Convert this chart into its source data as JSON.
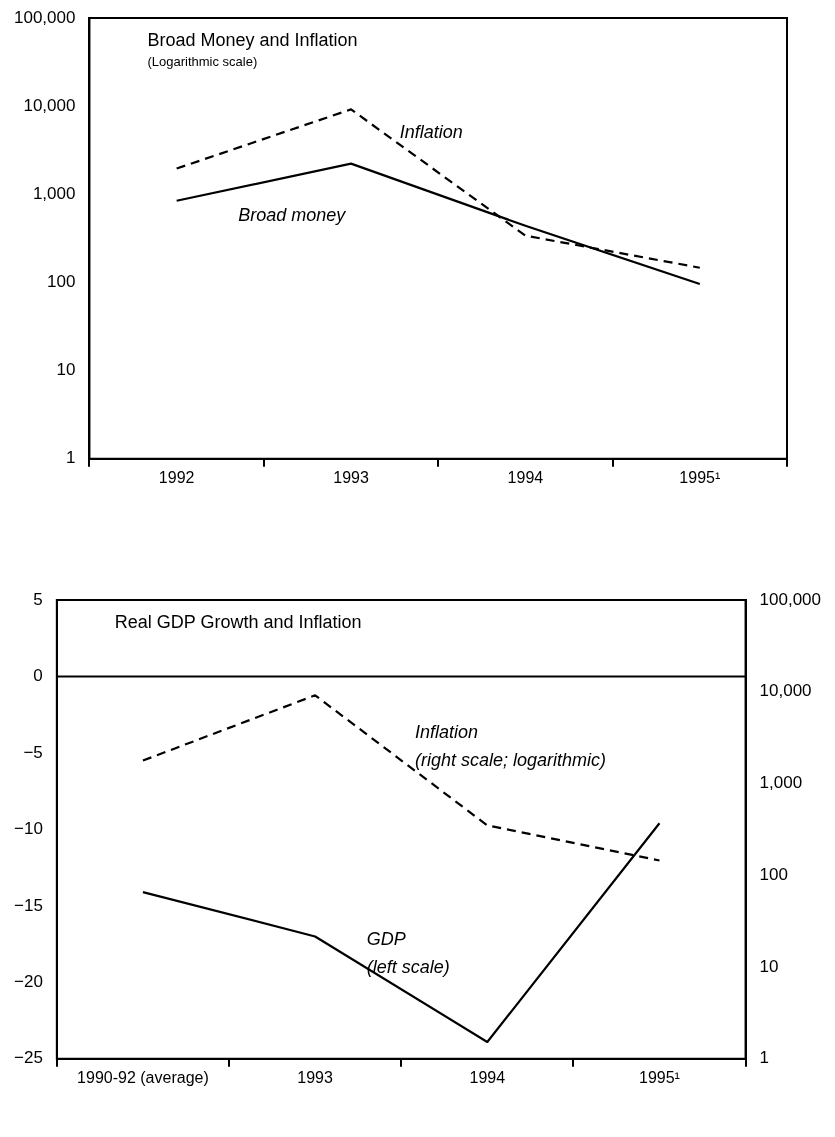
{
  "chart_data": [
    {
      "type": "line",
      "title": "Broad Money and Inflation",
      "subtitle": "(Logarithmic scale)",
      "categories": [
        "1992",
        "1993",
        "1994",
        "1995¹"
      ],
      "series": [
        {
          "color": "#000000",
          "line_style": "dashed",
          "values": [
            1960,
            9200,
            340,
            147
          ]
        },
        {
          "color": "#000000",
          "line_style": "solid",
          "values": [
            845,
            2230,
            440,
            96
          ]
        }
      ],
      "log": true,
      "ylim": [
        1,
        100000
      ],
      "yticks": [
        {
          "value": 1,
          "label": "1"
        },
        {
          "value": 10,
          "label": "10"
        },
        {
          "value": 100,
          "label": "100"
        },
        {
          "value": 1000,
          "label": "1,000"
        },
        {
          "value": 10000,
          "label": "10,000"
        },
        {
          "value": 100000,
          "label": "100,000"
        }
      ],
      "annotations": [
        "Inflation",
        "Broad money"
      ],
      "grid": false,
      "legend": false,
      "marker": "none"
    },
    {
      "type": "line",
      "title": "Real GDP Growth and Inflation",
      "categories": [
        "1990-92 (average)",
        "1993",
        "1994",
        "1995¹"
      ],
      "series": [
        {
          "color": "#000000",
          "line_style": "dashed",
          "axis": "y2",
          "values": [
            1780,
            9150,
            350,
            145
          ]
        },
        {
          "color": "#000000",
          "line_style": "solid",
          "values": [
            -14.1,
            -17,
            -23.9,
            -9.6
          ]
        }
      ],
      "log": "y2",
      "ylim": [
        -25,
        5
      ],
      "yticks": [
        {
          "value": -25,
          "label": "−25"
        },
        {
          "value": -20,
          "label": "−20"
        },
        {
          "value": -15,
          "label": "−15"
        },
        {
          "value": -10,
          "label": "−10"
        },
        {
          "value": -5,
          "label": "−5"
        },
        0,
        5
      ],
      "y2lim": [
        1,
        100000
      ],
      "y2ticks": [
        {
          "value": 1,
          "label": "1"
        },
        {
          "value": 10,
          "label": "10"
        },
        {
          "value": 100,
          "label": "100"
        },
        {
          "value": 1000,
          "label": "1,000"
        },
        {
          "value": 10000,
          "label": "10,000"
        },
        {
          "value": 100000,
          "label": "100,000"
        }
      ],
      "ref_lines": [
        {
          "axis": "y",
          "value": 0
        }
      ],
      "annotations": [
        "Inflation\n(right scale; logarithmic)",
        "GDP\n(left scale)"
      ],
      "grid": false,
      "legend": false,
      "marker": "none"
    }
  ]
}
